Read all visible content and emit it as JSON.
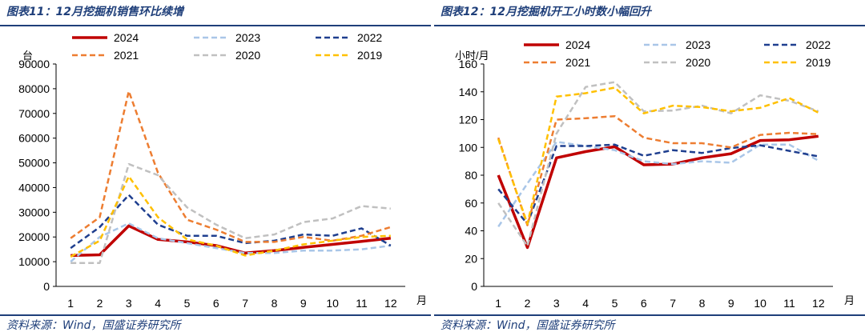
{
  "left": {
    "title": "图表11：12月挖掘机销售环比续增",
    "source": "资料来源：Wind，国盛证券研究所",
    "chart_data": {
      "type": "line",
      "ylabel": "台",
      "xunit": "月",
      "ylim": [
        0,
        90000
      ],
      "yticks": [
        "0",
        "10000",
        "20000",
        "30000",
        "40000",
        "50000",
        "60000",
        "70000",
        "80000",
        "90000"
      ],
      "categories": [
        "1",
        "2",
        "3",
        "4",
        "5",
        "6",
        "7",
        "8",
        "9",
        "10",
        "11",
        "12"
      ],
      "legend_position": "top",
      "series": [
        {
          "name": "2024",
          "color": "#c00000",
          "dash": "solid",
          "width": 3.5,
          "values": [
            12500,
            12800,
            24500,
            19000,
            18000,
            16500,
            13500,
            14500,
            15800,
            17000,
            18200,
            19500
          ]
        },
        {
          "name": "2023",
          "color": "#a9c6e8",
          "dash": "dash",
          "width": 2.5,
          "values": [
            10000,
            20000,
            25500,
            19500,
            17500,
            15500,
            13500,
            13500,
            14500,
            14500,
            15000,
            16500
          ]
        },
        {
          "name": "2022",
          "color": "#1f3f8f",
          "dash": "dash",
          "width": 2.5,
          "values": [
            15500,
            24000,
            37000,
            25000,
            20500,
            20500,
            17500,
            18500,
            21000,
            20500,
            23500,
            16500
          ]
        },
        {
          "name": "2021",
          "color": "#ed7d31",
          "dash": "dash",
          "width": 2.5,
          "values": [
            19500,
            28000,
            79000,
            46000,
            27000,
            23000,
            18000,
            18000,
            20000,
            18500,
            20500,
            24000
          ]
        },
        {
          "name": "2020",
          "color": "#c0c0c0",
          "dash": "dash",
          "width": 2.5,
          "values": [
            9500,
            9500,
            49500,
            45000,
            32000,
            25000,
            19500,
            21000,
            26000,
            27500,
            32500,
            31500
          ]
        },
        {
          "name": "2019",
          "color": "#ffc000",
          "dash": "dash",
          "width": 2.5,
          "values": [
            12000,
            18500,
            44500,
            28000,
            19000,
            16500,
            12500,
            14500,
            17000,
            18500,
            20000,
            20500
          ]
        }
      ]
    }
  },
  "right": {
    "title": "图表12：12月挖掘机开工小时数小幅回升",
    "source": "资料来源：Wind，国盛证券研究所",
    "chart_data": {
      "type": "line",
      "ylabel": "小时/月",
      "xunit": "月",
      "ylim": [
        0,
        160
      ],
      "yticks": [
        "0",
        "20",
        "40",
        "60",
        "80",
        "100",
        "120",
        "140",
        "160"
      ],
      "categories": [
        "1",
        "2",
        "3",
        "4",
        "5",
        "6",
        "7",
        "8",
        "9",
        "10",
        "11",
        "12"
      ],
      "legend_position": "top",
      "series": [
        {
          "name": "2024",
          "color": "#c00000",
          "dash": "solid",
          "width": 3.5,
          "values": [
            80,
            28,
            92.5,
            97,
            100.5,
            87.5,
            88,
            92.5,
            95.5,
            105,
            105.5,
            108
          ]
        },
        {
          "name": "2023",
          "color": "#a9c6e8",
          "dash": "dash",
          "width": 2.5,
          "values": [
            43,
            74,
            104,
            101,
            98,
            90,
            88,
            90,
            89,
            102,
            102,
            90.5
          ]
        },
        {
          "name": "2022",
          "color": "#1f3f8f",
          "dash": "dash",
          "width": 2.5,
          "values": [
            70,
            45,
            101,
            101,
            102,
            94,
            98,
            96,
            99.5,
            101.5,
            97.5,
            93.5
          ]
        },
        {
          "name": "2021",
          "color": "#ed7d31",
          "dash": "dash",
          "width": 2.5,
          "values": [
            107,
            44,
            120,
            121,
            122.5,
            107,
            103,
            103,
            100,
            109,
            110.5,
            109.5
          ]
        },
        {
          "name": "2020",
          "color": "#c0c0c0",
          "dash": "dash",
          "width": 2.5,
          "values": [
            60,
            29,
            110,
            143.5,
            147,
            126,
            126.5,
            130,
            124.5,
            137.5,
            133.5,
            126
          ]
        },
        {
          "name": "2019",
          "color": "#ffc000",
          "dash": "dash",
          "width": 2.5,
          "values": [
            106,
            45,
            136.5,
            139,
            143,
            124.5,
            130,
            129,
            126,
            128.5,
            135.5,
            125
          ]
        }
      ]
    }
  }
}
